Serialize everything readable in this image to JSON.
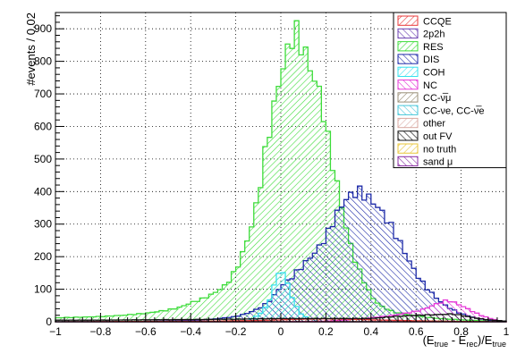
{
  "chart_data": {
    "type": "histogram",
    "xlabel": "(E_true - E_rec)/E_true",
    "xlabel_parts": {
      "open": "(E",
      "sub1": "true",
      "mid": " - E",
      "sub2": "rec",
      "close": ")/E",
      "sub3": "true"
    },
    "ylabel": "#events / 0.02",
    "xlim": [
      -1,
      1
    ],
    "ylim": [
      0,
      950
    ],
    "bin_width": 0.02,
    "grid": true,
    "legend_placement": "top-right",
    "x_ticks": [
      -1,
      -0.8,
      -0.6,
      -0.4,
      -0.2,
      0,
      0.2,
      0.4,
      0.6,
      0.8,
      1
    ],
    "x_tick_labels": [
      "−1",
      "−0.8",
      "−0.6",
      "−0.4",
      "−0.2",
      "0",
      "0.2",
      "0.4",
      "0.6",
      "0.8",
      "1"
    ],
    "y_ticks": [
      0,
      100,
      200,
      300,
      400,
      500,
      600,
      700,
      800,
      900
    ],
    "y_tick_labels": [
      "0",
      "100",
      "200",
      "300",
      "400",
      "500",
      "600",
      "700",
      "800",
      "900"
    ],
    "legend": [
      {
        "label": "CCQE",
        "color": "#e8383a"
      },
      {
        "label": "2p2h",
        "color": "#6b3fb0"
      },
      {
        "label": "RES",
        "color": "#3ddc3a"
      },
      {
        "label": "DIS",
        "color": "#1d2aa8"
      },
      {
        "label": "COH",
        "color": "#36e0ee"
      },
      {
        "label": "NC",
        "color": "#e63ad8"
      },
      {
        "label": "CC-ν̅μ",
        "color": "#9a8f78"
      },
      {
        "label": "CC-νe, CC-ν̅e",
        "color": "#47c6d9"
      },
      {
        "label": "other",
        "color": "#d9a9a2"
      },
      {
        "label": "out FV",
        "color": "#111111"
      },
      {
        "label": "no truth",
        "color": "#e8c63a"
      },
      {
        "label": "sand μ",
        "color": "#8a2ea3"
      }
    ],
    "series": [
      {
        "name": "RES",
        "color": "#3ddc3a",
        "points": [
          [
            -1,
            12
          ],
          [
            -0.9,
            14
          ],
          [
            -0.8,
            16
          ],
          [
            -0.7,
            20
          ],
          [
            -0.6,
            26
          ],
          [
            -0.5,
            36
          ],
          [
            -0.45,
            44
          ],
          [
            -0.4,
            58
          ],
          [
            -0.35,
            70
          ],
          [
            -0.3,
            86
          ],
          [
            -0.25,
            110
          ],
          [
            -0.22,
            135
          ],
          [
            -0.2,
            160
          ],
          [
            -0.18,
            190
          ],
          [
            -0.16,
            230
          ],
          [
            -0.14,
            270
          ],
          [
            -0.12,
            320
          ],
          [
            -0.1,
            390
          ],
          [
            -0.08,
            470
          ],
          [
            -0.06,
            560
          ],
          [
            -0.04,
            620
          ],
          [
            -0.02,
            700
          ],
          [
            0,
            760
          ],
          [
            0.02,
            810
          ],
          [
            0.04,
            850
          ],
          [
            0.06,
            900
          ],
          [
            0.08,
            870
          ],
          [
            0.1,
            840
          ],
          [
            0.12,
            800
          ],
          [
            0.14,
            760
          ],
          [
            0.16,
            730
          ],
          [
            0.18,
            680
          ],
          [
            0.2,
            600
          ],
          [
            0.22,
            520
          ],
          [
            0.24,
            450
          ],
          [
            0.26,
            390
          ],
          [
            0.28,
            320
          ],
          [
            0.3,
            260
          ],
          [
            0.32,
            210
          ],
          [
            0.34,
            170
          ],
          [
            0.36,
            140
          ],
          [
            0.38,
            110
          ],
          [
            0.4,
            80
          ],
          [
            0.44,
            50
          ],
          [
            0.5,
            30
          ],
          [
            0.6,
            18
          ],
          [
            0.7,
            10
          ],
          [
            0.8,
            6
          ],
          [
            0.9,
            3
          ],
          [
            1,
            0
          ]
        ]
      },
      {
        "name": "DIS",
        "color": "#1d2aa8",
        "points": [
          [
            -1,
            0
          ],
          [
            -0.6,
            1
          ],
          [
            -0.4,
            4
          ],
          [
            -0.3,
            8
          ],
          [
            -0.2,
            16
          ],
          [
            -0.15,
            26
          ],
          [
            -0.1,
            40
          ],
          [
            -0.06,
            58
          ],
          [
            -0.04,
            72
          ],
          [
            -0.02,
            90
          ],
          [
            0,
            110
          ],
          [
            0.04,
            130
          ],
          [
            0.08,
            160
          ],
          [
            0.12,
            190
          ],
          [
            0.16,
            220
          ],
          [
            0.2,
            260
          ],
          [
            0.24,
            320
          ],
          [
            0.28,
            370
          ],
          [
            0.3,
            385
          ],
          [
            0.32,
            392
          ],
          [
            0.34,
            402
          ],
          [
            0.36,
            396
          ],
          [
            0.38,
            385
          ],
          [
            0.4,
            375
          ],
          [
            0.44,
            345
          ],
          [
            0.48,
            305
          ],
          [
            0.52,
            255
          ],
          [
            0.56,
            200
          ],
          [
            0.6,
            148
          ],
          [
            0.64,
            110
          ],
          [
            0.68,
            80
          ],
          [
            0.72,
            55
          ],
          [
            0.76,
            38
          ],
          [
            0.8,
            25
          ],
          [
            0.86,
            12
          ],
          [
            0.92,
            5
          ],
          [
            1,
            0
          ]
        ]
      },
      {
        "name": "COH",
        "color": "#36e0ee",
        "points": [
          [
            -0.16,
            0
          ],
          [
            -0.1,
            20
          ],
          [
            -0.06,
            50
          ],
          [
            -0.04,
            90
          ],
          [
            -0.02,
            130
          ],
          [
            0,
            170
          ],
          [
            0.02,
            135
          ],
          [
            0.04,
            95
          ],
          [
            0.06,
            60
          ],
          [
            0.08,
            30
          ],
          [
            0.12,
            10
          ],
          [
            0.16,
            0
          ]
        ]
      },
      {
        "name": "NC",
        "color": "#e63ad8",
        "points": [
          [
            -1,
            0
          ],
          [
            0,
            0
          ],
          [
            0.2,
            2
          ],
          [
            0.3,
            6
          ],
          [
            0.4,
            12
          ],
          [
            0.5,
            20
          ],
          [
            0.6,
            32
          ],
          [
            0.64,
            40
          ],
          [
            0.68,
            52
          ],
          [
            0.72,
            62
          ],
          [
            0.74,
            66
          ],
          [
            0.76,
            62
          ],
          [
            0.8,
            50
          ],
          [
            0.84,
            36
          ],
          [
            0.88,
            22
          ],
          [
            0.92,
            12
          ],
          [
            0.96,
            5
          ],
          [
            1,
            0
          ]
        ]
      },
      {
        "name": "CCQE",
        "color": "#e8383a",
        "points": [
          [
            -1,
            0
          ],
          [
            -0.3,
            2
          ],
          [
            -0.1,
            4
          ],
          [
            0,
            6
          ],
          [
            0.1,
            8
          ],
          [
            0.2,
            9
          ],
          [
            0.3,
            8
          ],
          [
            0.4,
            6
          ],
          [
            0.6,
            3
          ],
          [
            0.8,
            1
          ],
          [
            1,
            0
          ]
        ]
      },
      {
        "name": "out FV",
        "color": "#111111",
        "points": [
          [
            -1,
            5
          ],
          [
            -0.8,
            5
          ],
          [
            -0.6,
            6
          ],
          [
            -0.4,
            7
          ],
          [
            -0.2,
            8
          ],
          [
            0,
            10
          ],
          [
            0.2,
            10
          ],
          [
            0.4,
            10
          ],
          [
            0.5,
            16
          ],
          [
            0.6,
            20
          ],
          [
            0.7,
            22
          ],
          [
            0.76,
            24
          ],
          [
            0.8,
            20
          ],
          [
            0.86,
            12
          ],
          [
            0.92,
            6
          ],
          [
            1,
            2
          ]
        ]
      }
    ]
  }
}
